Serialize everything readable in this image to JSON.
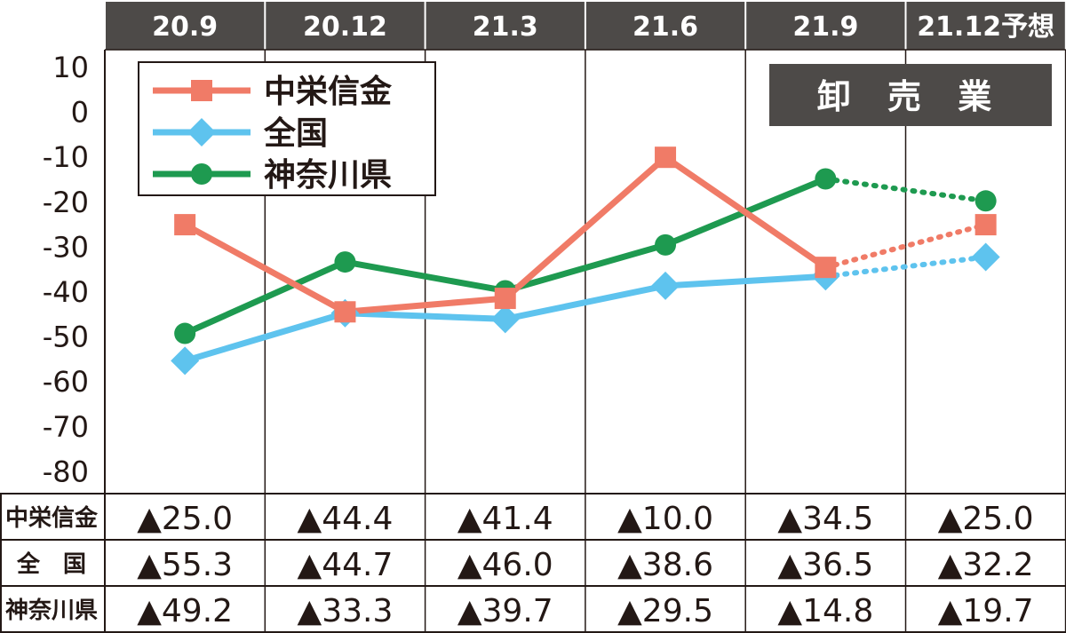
{
  "chart_data": {
    "type": "line",
    "categories": [
      "20.9",
      "20.12",
      "21.3",
      "21.6",
      "21.9",
      "21.12予想"
    ],
    "sector_label": "卸 売 業",
    "ylim": [
      -80,
      10
    ],
    "yticks": [
      "10",
      "0",
      "-10",
      "-20",
      "-30",
      "-40",
      "-50",
      "-60",
      "-70",
      "-80"
    ],
    "grid": "vertical",
    "legend_position": "top-left",
    "forecast_from_index": 4,
    "series": [
      {
        "name": "中栄信金",
        "color": "#f07b67",
        "marker": "square",
        "values": [
          -25.0,
          -44.4,
          -41.4,
          -10.0,
          -34.5,
          -25.0
        ],
        "labels": [
          "▲25.0",
          "▲44.4",
          "▲41.4",
          "▲10.0",
          "▲34.5",
          "▲25.0"
        ]
      },
      {
        "name": "全国",
        "table_label": "全　国",
        "color": "#5ec3ee",
        "marker": "diamond",
        "values": [
          -55.3,
          -44.7,
          -46.0,
          -38.6,
          -36.5,
          -32.2
        ],
        "labels": [
          "▲55.3",
          "▲44.7",
          "▲46.0",
          "▲38.6",
          "▲36.5",
          "▲32.2"
        ]
      },
      {
        "name": "神奈川県",
        "color": "#1e9a50",
        "marker": "circle",
        "values": [
          -49.2,
          -33.3,
          -39.7,
          -29.5,
          -14.8,
          -19.7
        ],
        "labels": [
          "▲49.2",
          "▲33.3",
          "▲39.7",
          "▲29.5",
          "▲14.8",
          "▲19.7"
        ]
      }
    ]
  },
  "colors": {
    "header_bg": "#4d4a48",
    "text": "#231815",
    "grid": "#231815"
  }
}
